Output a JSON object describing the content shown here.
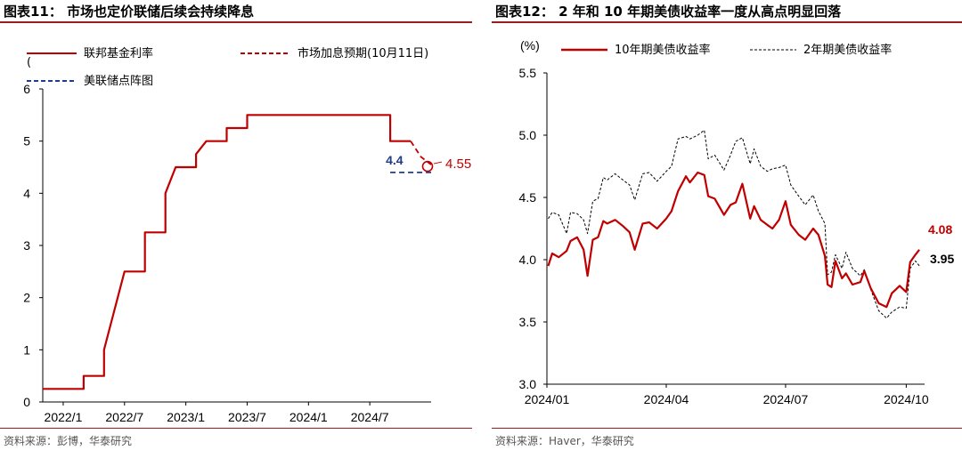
{
  "left": {
    "title": "图表11：  市场也定价联储后续会持续降息",
    "source": "资料来源：彭博，华泰研究",
    "paren": "(",
    "chart_data": {
      "type": "line",
      "title": "图表11：  市场也定价联储后续会持续降息",
      "ylim": [
        0,
        6
      ],
      "yticks": [
        0,
        1,
        2,
        3,
        4,
        5,
        6
      ],
      "xlim": [
        "2021-11",
        "2025-01"
      ],
      "xticks": [
        "2022/1",
        "2022/7",
        "2023/1",
        "2023/7",
        "2024/1",
        "2024/7"
      ],
      "grid": false,
      "legend_position": "top",
      "colors": {
        "fed": "#c00000",
        "market": "#c00000",
        "dot": "#1f3c88"
      },
      "series": [
        {
          "name": "联邦基金利率",
          "style": "solid",
          "points": [
            [
              "2021-11",
              0.25
            ],
            [
              "2022-03",
              0.25
            ],
            [
              "2022-03",
              0.5
            ],
            [
              "2022-05",
              0.5
            ],
            [
              "2022-05",
              1.0
            ],
            [
              "2022-06",
              1.75
            ],
            [
              "2022-07",
              2.5
            ],
            [
              "2022-09",
              2.5
            ],
            [
              "2022-09",
              3.25
            ],
            [
              "2022-11",
              3.25
            ],
            [
              "2022-11",
              4.0
            ],
            [
              "2022-12",
              4.5
            ],
            [
              "2023-02",
              4.5
            ],
            [
              "2023-02",
              4.75
            ],
            [
              "2023-03",
              5.0
            ],
            [
              "2023-05",
              5.0
            ],
            [
              "2023-05",
              5.25
            ],
            [
              "2023-07",
              5.25
            ],
            [
              "2023-07",
              5.5
            ],
            [
              "2024-09",
              5.5
            ],
            [
              "2024-09",
              5.0
            ],
            [
              "2024-11",
              5.0
            ]
          ]
        },
        {
          "name": "市场加息预期(10月11日)",
          "style": "dashed",
          "points": [
            [
              "2024-11",
              5.0
            ],
            [
              "2024-12",
              4.7
            ],
            [
              "2025-01",
              4.55
            ]
          ]
        },
        {
          "name": "美联储点阵图",
          "style": "dashed",
          "points": [
            [
              "2024-09",
              4.4
            ],
            [
              "2025-01",
              4.4
            ]
          ]
        }
      ],
      "annotations": [
        {
          "text": "4.4",
          "x": "2024-09",
          "y": 4.4,
          "color": "#1f3c88",
          "bold": true
        },
        {
          "text": "4.55",
          "x": "2025-01",
          "y": 4.55,
          "color": "#c00000",
          "bold": false,
          "marker": "circle"
        }
      ]
    }
  },
  "right": {
    "title": "图表12：  2 年和 10 年期美债收益率一度从高点明显回落",
    "source": "资料来源：Haver，华泰研究",
    "chart_data": {
      "type": "line",
      "title": "图表12：  2 年和 10 年期美债收益率一度从高点明显回落",
      "ylabel": "(%)",
      "ylim": [
        3.0,
        5.5
      ],
      "yticks": [
        "3.0",
        "3.5",
        "4.0",
        "4.5",
        "5.0",
        "5.5"
      ],
      "xlim": [
        "2024-01-01",
        "2024-10-15"
      ],
      "xticks": [
        {
          "date": "2024-01-01",
          "label": "2024/01"
        },
        {
          "date": "2024-04-01",
          "label": "2024/04"
        },
        {
          "date": "2024-07-01",
          "label": "2024/07"
        },
        {
          "date": "2024-10-01",
          "label": "2024/10"
        }
      ],
      "grid": false,
      "legend_position": "top",
      "colors": {
        "ten": "#c00000",
        "two": "#000000"
      },
      "series": [
        {
          "name": "10年期美债收益率",
          "style": "solid",
          "points": [
            [
              "2024-01-02",
              3.95
            ],
            [
              "2024-01-05",
              4.05
            ],
            [
              "2024-01-10",
              4.02
            ],
            [
              "2024-01-16",
              4.07
            ],
            [
              "2024-01-19",
              4.15
            ],
            [
              "2024-01-24",
              4.18
            ],
            [
              "2024-01-29",
              4.08
            ],
            [
              "2024-02-01",
              3.87
            ],
            [
              "2024-02-05",
              4.16
            ],
            [
              "2024-02-09",
              4.18
            ],
            [
              "2024-02-13",
              4.31
            ],
            [
              "2024-02-16",
              4.29
            ],
            [
              "2024-02-22",
              4.32
            ],
            [
              "2024-02-28",
              4.27
            ],
            [
              "2024-03-04",
              4.22
            ],
            [
              "2024-03-08",
              4.08
            ],
            [
              "2024-03-14",
              4.29
            ],
            [
              "2024-03-19",
              4.3
            ],
            [
              "2024-03-25",
              4.25
            ],
            [
              "2024-04-01",
              4.33
            ],
            [
              "2024-04-05",
              4.39
            ],
            [
              "2024-04-10",
              4.55
            ],
            [
              "2024-04-16",
              4.67
            ],
            [
              "2024-04-19",
              4.62
            ],
            [
              "2024-04-25",
              4.7
            ],
            [
              "2024-04-30",
              4.68
            ],
            [
              "2024-05-03",
              4.51
            ],
            [
              "2024-05-08",
              4.49
            ],
            [
              "2024-05-15",
              4.36
            ],
            [
              "2024-05-20",
              4.44
            ],
            [
              "2024-05-24",
              4.46
            ],
            [
              "2024-05-29",
              4.61
            ],
            [
              "2024-06-04",
              4.33
            ],
            [
              "2024-06-07",
              4.43
            ],
            [
              "2024-06-12",
              4.32
            ],
            [
              "2024-06-17",
              4.28
            ],
            [
              "2024-06-21",
              4.25
            ],
            [
              "2024-06-26",
              4.32
            ],
            [
              "2024-07-01",
              4.47
            ],
            [
              "2024-07-05",
              4.28
            ],
            [
              "2024-07-11",
              4.2
            ],
            [
              "2024-07-16",
              4.16
            ],
            [
              "2024-07-22",
              4.25
            ],
            [
              "2024-07-26",
              4.2
            ],
            [
              "2024-07-31",
              4.03
            ],
            [
              "2024-08-02",
              3.8
            ],
            [
              "2024-08-05",
              3.78
            ],
            [
              "2024-08-08",
              3.99
            ],
            [
              "2024-08-13",
              3.85
            ],
            [
              "2024-08-16",
              3.89
            ],
            [
              "2024-08-21",
              3.8
            ],
            [
              "2024-08-27",
              3.82
            ],
            [
              "2024-08-30",
              3.91
            ],
            [
              "2024-09-04",
              3.77
            ],
            [
              "2024-09-10",
              3.65
            ],
            [
              "2024-09-16",
              3.62
            ],
            [
              "2024-09-20",
              3.73
            ],
            [
              "2024-09-26",
              3.79
            ],
            [
              "2024-10-01",
              3.74
            ],
            [
              "2024-10-04",
              3.98
            ],
            [
              "2024-10-08",
              4.04
            ],
            [
              "2024-10-11",
              4.08
            ]
          ]
        },
        {
          "name": "2年期美债收益率",
          "style": "dashed",
          "points": [
            [
              "2024-01-02",
              4.33
            ],
            [
              "2024-01-05",
              4.38
            ],
            [
              "2024-01-10",
              4.36
            ],
            [
              "2024-01-16",
              4.21
            ],
            [
              "2024-01-19",
              4.38
            ],
            [
              "2024-01-24",
              4.37
            ],
            [
              "2024-01-29",
              4.32
            ],
            [
              "2024-02-01",
              4.21
            ],
            [
              "2024-02-05",
              4.47
            ],
            [
              "2024-02-09",
              4.49
            ],
            [
              "2024-02-13",
              4.66
            ],
            [
              "2024-02-16",
              4.64
            ],
            [
              "2024-02-22",
              4.69
            ],
            [
              "2024-02-28",
              4.64
            ],
            [
              "2024-03-04",
              4.6
            ],
            [
              "2024-03-08",
              4.48
            ],
            [
              "2024-03-14",
              4.69
            ],
            [
              "2024-03-19",
              4.7
            ],
            [
              "2024-03-25",
              4.63
            ],
            [
              "2024-04-01",
              4.71
            ],
            [
              "2024-04-05",
              4.75
            ],
            [
              "2024-04-10",
              4.97
            ],
            [
              "2024-04-16",
              4.99
            ],
            [
              "2024-04-19",
              4.97
            ],
            [
              "2024-04-25",
              5.0
            ],
            [
              "2024-04-30",
              5.04
            ],
            [
              "2024-05-03",
              4.81
            ],
            [
              "2024-05-08",
              4.84
            ],
            [
              "2024-05-15",
              4.72
            ],
            [
              "2024-05-20",
              4.84
            ],
            [
              "2024-05-24",
              4.95
            ],
            [
              "2024-05-29",
              4.98
            ],
            [
              "2024-06-04",
              4.77
            ],
            [
              "2024-06-07",
              4.89
            ],
            [
              "2024-06-12",
              4.75
            ],
            [
              "2024-06-17",
              4.71
            ],
            [
              "2024-06-21",
              4.73
            ],
            [
              "2024-06-26",
              4.74
            ],
            [
              "2024-07-01",
              4.76
            ],
            [
              "2024-07-05",
              4.6
            ],
            [
              "2024-07-11",
              4.51
            ],
            [
              "2024-07-16",
              4.44
            ],
            [
              "2024-07-22",
              4.52
            ],
            [
              "2024-07-26",
              4.39
            ],
            [
              "2024-07-31",
              4.29
            ],
            [
              "2024-08-02",
              3.88
            ],
            [
              "2024-08-05",
              3.9
            ],
            [
              "2024-08-08",
              4.04
            ],
            [
              "2024-08-13",
              3.93
            ],
            [
              "2024-08-16",
              4.06
            ],
            [
              "2024-08-21",
              3.93
            ],
            [
              "2024-08-27",
              3.87
            ],
            [
              "2024-08-30",
              3.92
            ],
            [
              "2024-09-04",
              3.76
            ],
            [
              "2024-09-10",
              3.59
            ],
            [
              "2024-09-16",
              3.53
            ],
            [
              "2024-09-20",
              3.58
            ],
            [
              "2024-09-26",
              3.62
            ],
            [
              "2024-10-01",
              3.61
            ],
            [
              "2024-10-04",
              3.93
            ],
            [
              "2024-10-08",
              3.99
            ],
            [
              "2024-10-11",
              3.95
            ]
          ]
        }
      ],
      "annotations": [
        {
          "text": "4.08",
          "x": "2024-10-11",
          "y": 4.08,
          "color": "#c00000"
        },
        {
          "text": "3.95",
          "x": "2024-10-11",
          "y": 3.95,
          "color": "#000000"
        }
      ]
    }
  }
}
